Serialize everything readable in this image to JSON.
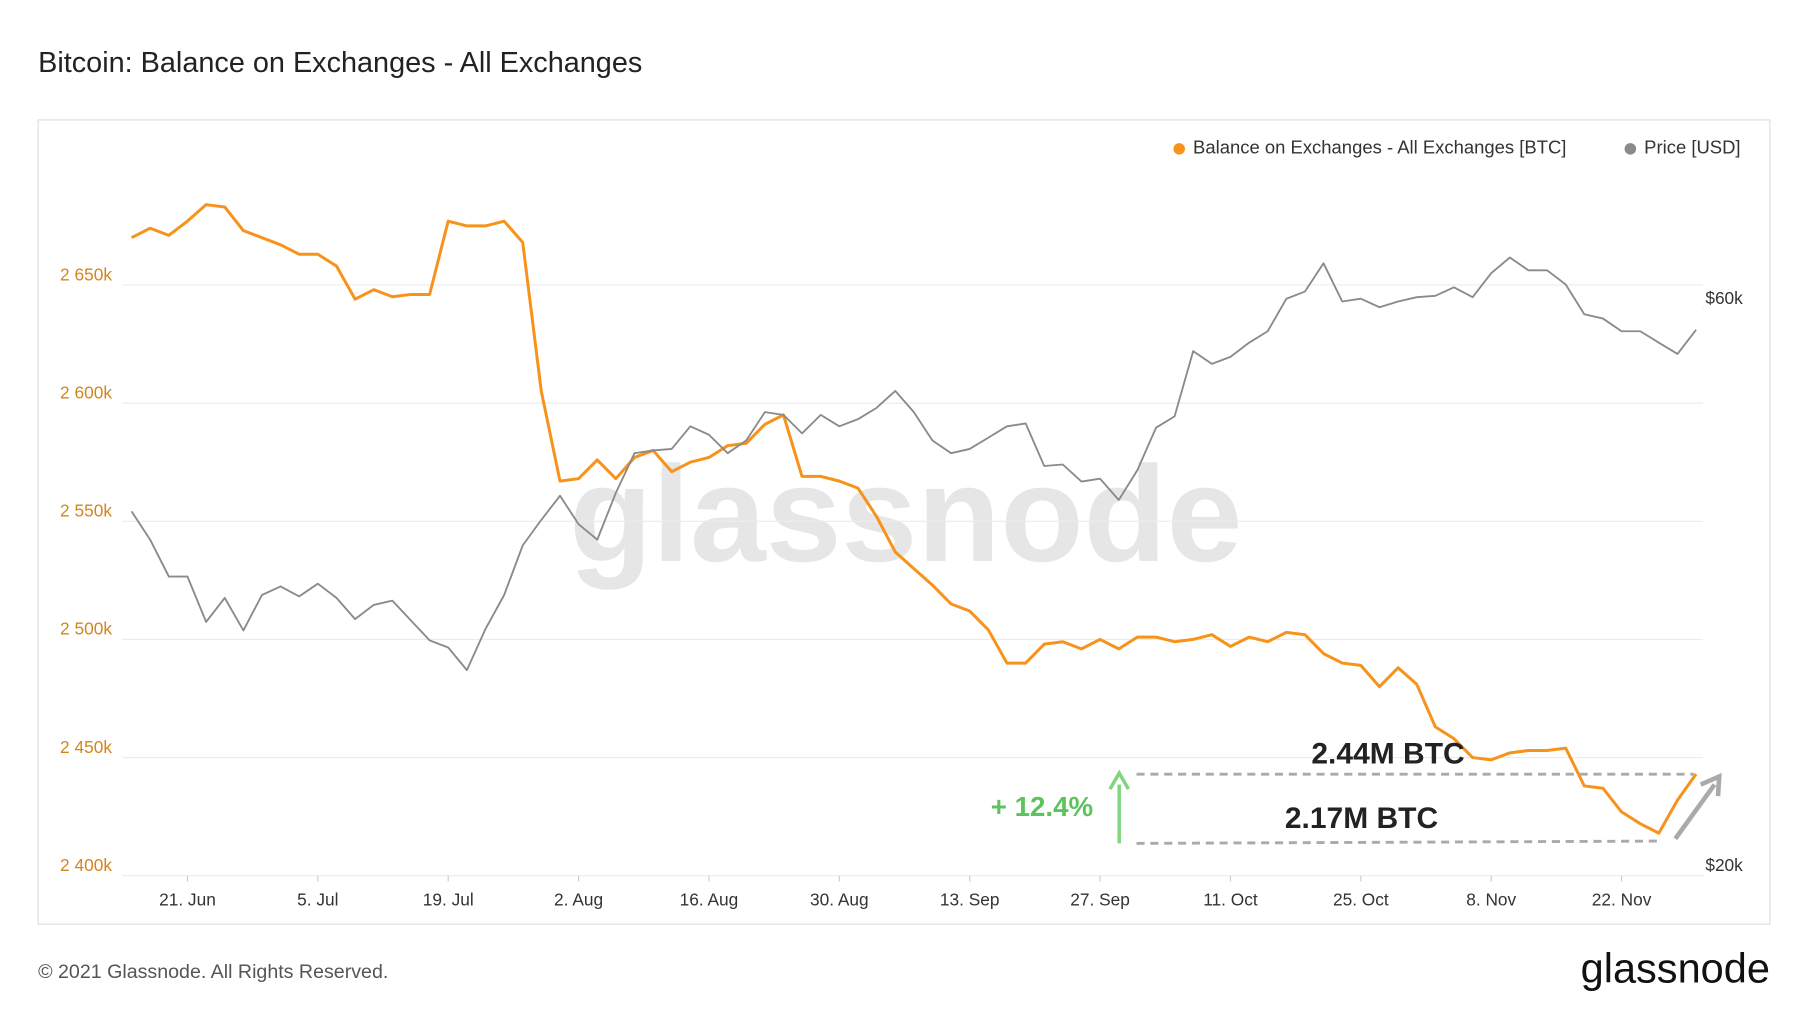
{
  "chart_data": {
    "type": "line",
    "title": "Bitcoin: Balance on Exchanges - All Exchanges",
    "x": [
      "15. Jun",
      "17. Jun",
      "19. Jun",
      "21. Jun",
      "23. Jun",
      "25. Jun",
      "27. Jun",
      "29. Jun",
      "1. Jul",
      "3. Jul",
      "5. Jul",
      "7. Jul",
      "9. Jul",
      "11. Jul",
      "13. Jul",
      "15. Jul",
      "17. Jul",
      "19. Jul",
      "21. Jul",
      "23. Jul",
      "25. Jul",
      "27. Jul",
      "29. Jul",
      "31. Jul",
      "2. Aug",
      "4. Aug",
      "6. Aug",
      "8. Aug",
      "10. Aug",
      "12. Aug",
      "14. Aug",
      "16. Aug",
      "18. Aug",
      "20. Aug",
      "22. Aug",
      "24. Aug",
      "26. Aug",
      "28. Aug",
      "30. Aug",
      "1. Sep",
      "3. Sep",
      "5. Sep",
      "7. Sep",
      "9. Sep",
      "11. Sep",
      "13. Sep",
      "15. Sep",
      "17. Sep",
      "19. Sep",
      "21. Sep",
      "23. Sep",
      "25. Sep",
      "27. Sep",
      "29. Sep",
      "1. Oct",
      "3. Oct",
      "5. Oct",
      "7. Oct",
      "9. Oct",
      "11. Oct",
      "13. Oct",
      "15. Oct",
      "17. Oct",
      "19. Oct",
      "21. Oct",
      "23. Oct",
      "25. Oct",
      "27. Oct",
      "29. Oct",
      "31. Oct",
      "2. Nov",
      "4. Nov",
      "6. Nov",
      "8. Nov",
      "10. Nov",
      "12. Nov",
      "14. Nov",
      "16. Nov",
      "18. Nov",
      "20. Nov",
      "22. Nov",
      "24. Nov",
      "26. Nov",
      "28. Nov",
      "30. Nov"
    ],
    "xticks": [
      "21. Jun",
      "5. Jul",
      "19. Jul",
      "2. Aug",
      "16. Aug",
      "30. Aug",
      "13. Sep",
      "27. Sep",
      "11. Oct",
      "25. Oct",
      "8. Nov",
      "22. Nov"
    ],
    "series": [
      {
        "name": "Balance on Exchanges - All Exchanges [BTC]",
        "color": "#f7931a",
        "axis": "y",
        "values": [
          2670000,
          2674000,
          2671000,
          2677000,
          2684000,
          2683000,
          2673000,
          2670000,
          2667000,
          2663000,
          2663000,
          2658000,
          2644000,
          2648000,
          2645000,
          2646000,
          2646000,
          2677000,
          2675000,
          2675000,
          2677000,
          2668000,
          2605000,
          2567000,
          2568000,
          2576000,
          2568000,
          2577000,
          2580000,
          2571000,
          2575000,
          2577000,
          2582000,
          2583000,
          2591000,
          2595000,
          2569000,
          2569000,
          2567000,
          2564000,
          2552000,
          2537000,
          2530000,
          2523000,
          2515000,
          2512000,
          2504000,
          2490000,
          2490000,
          2498000,
          2499000,
          2496000,
          2500000,
          2496000,
          2501000,
          2501000,
          2499000,
          2500000,
          2502000,
          2497000,
          2501000,
          2499000,
          2503000,
          2502000,
          2494000,
          2490000,
          2489000,
          2480000,
          2488000,
          2481000,
          2463000,
          2458000,
          2450000,
          2449000,
          2452000,
          2453000,
          2453000,
          2454000,
          2438000,
          2437000,
          2427000,
          2422000,
          2418000,
          2432000,
          2443000
        ]
      },
      {
        "name": "Price [USD]",
        "color": "#8a8a8a",
        "axis": "y2",
        "values": [
          45700,
          43700,
          41100,
          41100,
          37900,
          39600,
          37300,
          39800,
          40400,
          39700,
          40600,
          39600,
          38100,
          39100,
          39400,
          38000,
          36600,
          36100,
          34500,
          37400,
          39800,
          43300,
          45100,
          46800,
          44800,
          43700,
          47000,
          49800,
          50000,
          50100,
          51700,
          51100,
          49800,
          50700,
          52700,
          52500,
          51200,
          52500,
          51700,
          52200,
          53000,
          54200,
          52700,
          50700,
          49800,
          50100,
          50900,
          51700,
          51900,
          48900,
          49000,
          47800,
          48000,
          46500,
          48600,
          51600,
          52400,
          57000,
          56100,
          56600,
          57600,
          58400,
          60700,
          61200,
          63200,
          60500,
          60700,
          60100,
          60500,
          60800,
          60900,
          61500,
          60800,
          62500,
          63600,
          62700,
          62700,
          61700,
          59600,
          59300,
          58400,
          58400,
          57600,
          56800,
          58500
        ]
      }
    ],
    "ylim": [
      2400000,
      2700000
    ],
    "yticks": [
      {
        "value": 2400000,
        "label": "2 400k"
      },
      {
        "value": 2450000,
        "label": "2 450k"
      },
      {
        "value": 2500000,
        "label": "2 500k"
      },
      {
        "value": 2550000,
        "label": "2 550k"
      },
      {
        "value": 2600000,
        "label": "2 600k"
      },
      {
        "value": 2650000,
        "label": "2 650k"
      }
    ],
    "y2lim": [
      20000,
      70000
    ],
    "y2ticks": [
      {
        "value": 20000,
        "label": "$20k"
      },
      {
        "value": 60000,
        "label": "$60k"
      }
    ],
    "grid": true,
    "legend": "top-right",
    "annotations": [
      "2.44M BTC",
      "2.17M BTC",
      "+ 12.4%"
    ],
    "watermark": "glassnode",
    "footer": "© 2021 Glassnode. All Rights Reserved.",
    "logo": "glassnode"
  }
}
